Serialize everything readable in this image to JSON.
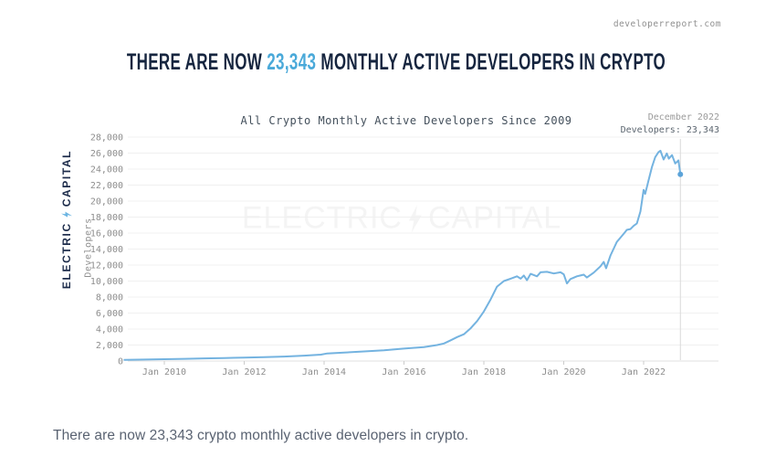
{
  "page": {
    "site_label": "developerreport.com",
    "headline": {
      "prefix": "THERE ARE NOW ",
      "highlight": "23,343",
      "suffix": " MONTHLY ACTIVE DEVELOPERS IN CRYPTO"
    },
    "caption": "There are now 23,343 crypto monthly active developers in crypto.",
    "brand": {
      "word1": "ELECTRIC",
      "word2": "CAPITAL"
    },
    "watermark": {
      "word1": "ELECTRIC",
      "word2": "CAPITAL"
    }
  },
  "colors": {
    "headline_dark": "#16253f",
    "headline_highlight": "#4aa9d9",
    "line": "#74b3e0",
    "endpoint_dot": "#5ba3d9",
    "gridline": "#f0f0f0",
    "axis_line": "#e2e2e2",
    "tick_text": "#8e8e8e",
    "reference_line": "#d9d9d9",
    "watermark": "#f4f4f4",
    "brand_navy": "#1c2b4a",
    "brand_bolt": "#6cb5e2"
  },
  "chart_data": {
    "type": "line",
    "title": "All Crypto Monthly Active Developers Since 2009",
    "ylabel": "Developers",
    "xlabel": "",
    "grid": "horizontal-only",
    "legend": "none",
    "annotation": {
      "line1": "December 2022",
      "line2": "Developers: 23,343"
    },
    "ylim": [
      0,
      28000
    ],
    "xlim": [
      2009,
      2023.9
    ],
    "y_ticks": [
      0,
      2000,
      4000,
      6000,
      8000,
      10000,
      12000,
      14000,
      16000,
      18000,
      20000,
      22000,
      24000,
      26000,
      28000
    ],
    "x_ticks": [
      {
        "label": "Jan 2010",
        "year": 2010
      },
      {
        "label": "Jan 2012",
        "year": 2012
      },
      {
        "label": "Jan 2014",
        "year": 2014
      },
      {
        "label": "Jan 2016",
        "year": 2016
      },
      {
        "label": "Jan 2018",
        "year": 2018
      },
      {
        "label": "Jan 2020",
        "year": 2020
      },
      {
        "label": "Jan 2022",
        "year": 2022
      }
    ],
    "series": [
      {
        "name": "All crypto monthly active developers",
        "color": "#74b3e0",
        "points": [
          [
            2009.0,
            150
          ],
          [
            2009.5,
            180
          ],
          [
            2010.0,
            230
          ],
          [
            2010.5,
            280
          ],
          [
            2011.0,
            330
          ],
          [
            2011.5,
            380
          ],
          [
            2012.0,
            430
          ],
          [
            2012.5,
            490
          ],
          [
            2013.0,
            560
          ],
          [
            2013.5,
            680
          ],
          [
            2013.92,
            800
          ],
          [
            2014.08,
            950
          ],
          [
            2014.5,
            1050
          ],
          [
            2015.0,
            1200
          ],
          [
            2015.5,
            1350
          ],
          [
            2016.0,
            1550
          ],
          [
            2016.5,
            1750
          ],
          [
            2016.83,
            2000
          ],
          [
            2017.0,
            2200
          ],
          [
            2017.17,
            2600
          ],
          [
            2017.33,
            3000
          ],
          [
            2017.5,
            3350
          ],
          [
            2017.67,
            4100
          ],
          [
            2017.83,
            5000
          ],
          [
            2018.0,
            6200
          ],
          [
            2018.17,
            7700
          ],
          [
            2018.33,
            9300
          ],
          [
            2018.5,
            10000
          ],
          [
            2018.67,
            10300
          ],
          [
            2018.83,
            10600
          ],
          [
            2018.92,
            10300
          ],
          [
            2019.0,
            10700
          ],
          [
            2019.08,
            10100
          ],
          [
            2019.17,
            10900
          ],
          [
            2019.33,
            10600
          ],
          [
            2019.42,
            11100
          ],
          [
            2019.58,
            11150
          ],
          [
            2019.75,
            10950
          ],
          [
            2019.92,
            11100
          ],
          [
            2020.0,
            10850
          ],
          [
            2020.08,
            9700
          ],
          [
            2020.17,
            10250
          ],
          [
            2020.33,
            10600
          ],
          [
            2020.5,
            10800
          ],
          [
            2020.58,
            10450
          ],
          [
            2020.75,
            11050
          ],
          [
            2020.92,
            11850
          ],
          [
            2021.0,
            12400
          ],
          [
            2021.06,
            11600
          ],
          [
            2021.17,
            13200
          ],
          [
            2021.33,
            14900
          ],
          [
            2021.5,
            15900
          ],
          [
            2021.58,
            16400
          ],
          [
            2021.67,
            16500
          ],
          [
            2021.75,
            16900
          ],
          [
            2021.83,
            17200
          ],
          [
            2021.92,
            18700
          ],
          [
            2022.0,
            21400
          ],
          [
            2022.04,
            20900
          ],
          [
            2022.12,
            22500
          ],
          [
            2022.21,
            24300
          ],
          [
            2022.29,
            25500
          ],
          [
            2022.37,
            26100
          ],
          [
            2022.42,
            26300
          ],
          [
            2022.5,
            25200
          ],
          [
            2022.58,
            25950
          ],
          [
            2022.63,
            25300
          ],
          [
            2022.71,
            25750
          ],
          [
            2022.79,
            24700
          ],
          [
            2022.87,
            25100
          ],
          [
            2022.92,
            23343
          ]
        ]
      }
    ],
    "end_point": {
      "year": 2022.92,
      "value": 23343,
      "label_date": "December 2022"
    }
  }
}
